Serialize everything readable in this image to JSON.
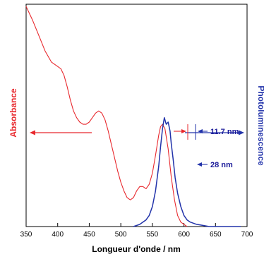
{
  "chart_data": {
    "type": "line",
    "xlabel": "Longueur d'onde / nm",
    "ylabel_left": "Absorbance",
    "ylabel_right": "Photoluminescence",
    "xlim": [
      350,
      700
    ],
    "ylim": [
      0,
      1
    ],
    "x_ticks": [
      "350",
      "400",
      "450",
      "500",
      "550",
      "600",
      "650",
      "700"
    ],
    "series": [
      {
        "color": "#e8282d",
        "axis": "left",
        "x": [
          350,
          360,
          370,
          380,
          390,
          400,
          405,
          410,
          415,
          420,
          425,
          430,
          435,
          440,
          445,
          450,
          455,
          460,
          465,
          470,
          475,
          480,
          485,
          490,
          495,
          500,
          505,
          510,
          515,
          520,
          525,
          530,
          535,
          540,
          545,
          550,
          555,
          560,
          563,
          566,
          570,
          575,
          580,
          585,
          590,
          595,
          600,
          605
        ],
        "values": [
          0.99,
          0.93,
          0.86,
          0.79,
          0.74,
          0.72,
          0.71,
          0.68,
          0.63,
          0.57,
          0.52,
          0.49,
          0.47,
          0.46,
          0.46,
          0.47,
          0.49,
          0.51,
          0.52,
          0.51,
          0.48,
          0.43,
          0.37,
          0.31,
          0.25,
          0.2,
          0.16,
          0.13,
          0.12,
          0.13,
          0.16,
          0.18,
          0.18,
          0.17,
          0.19,
          0.24,
          0.32,
          0.41,
          0.45,
          0.46,
          0.44,
          0.35,
          0.22,
          0.12,
          0.05,
          0.02,
          0.01,
          0.0
        ]
      },
      {
        "color": "#2233aa",
        "axis": "right",
        "x": [
          520,
          530,
          540,
          545,
          550,
          555,
          560,
          563,
          566,
          569,
          572,
          575,
          578,
          580,
          583,
          586,
          590,
          595,
          600,
          605,
          610,
          620,
          630,
          640,
          660,
          690
        ],
        "values": [
          0.0,
          0.01,
          0.03,
          0.05,
          0.09,
          0.16,
          0.27,
          0.36,
          0.44,
          0.49,
          0.46,
          0.47,
          0.43,
          0.37,
          0.3,
          0.22,
          0.15,
          0.09,
          0.05,
          0.03,
          0.02,
          0.01,
          0.005,
          0.0,
          0.0,
          0.0
        ]
      }
    ],
    "annotations": [
      {
        "text": "11.7 nm",
        "color": "#1a1a99"
      },
      {
        "text": "28 nm",
        "color": "#1a1a99"
      }
    ]
  }
}
